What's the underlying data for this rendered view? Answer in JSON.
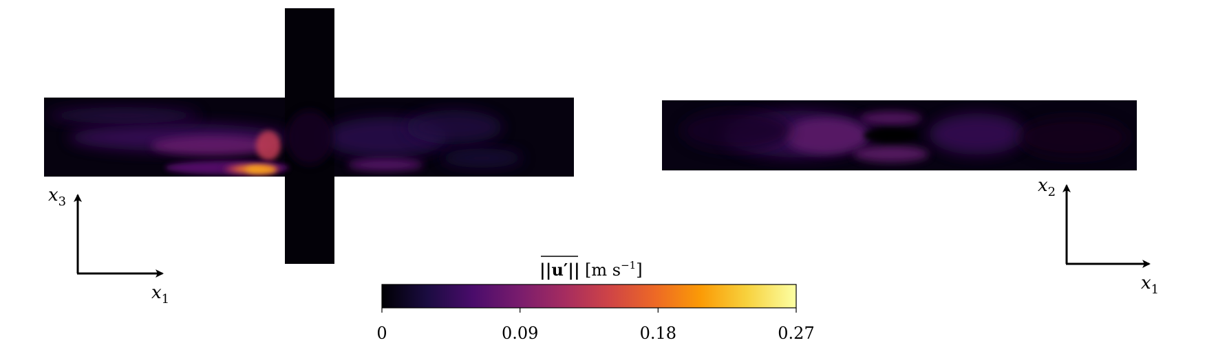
{
  "left_view": {
    "axis_horizontal": "x",
    "axis_horizontal_sub": "1",
    "axis_vertical": "x",
    "axis_vertical_sub": "3"
  },
  "right_view": {
    "axis_horizontal": "x",
    "axis_horizontal_sub": "1",
    "axis_vertical": "x",
    "axis_vertical_sub": "2"
  },
  "colorbar": {
    "label_quantity": "||u′||",
    "label_unit_open": "[m s",
    "label_unit_exp": "−1",
    "label_unit_close": "]",
    "ticks": [
      "0",
      "0.09",
      "0.18",
      "0.27"
    ],
    "colormap": "inferno",
    "colormap_stops": [
      "#000004",
      "#1b0c41",
      "#4a0c6b",
      "#781c6d",
      "#a52c60",
      "#cf4446",
      "#ed6925",
      "#fb9b06",
      "#f7d13d",
      "#fcffa4"
    ],
    "range": [
      0,
      0.27
    ]
  }
}
